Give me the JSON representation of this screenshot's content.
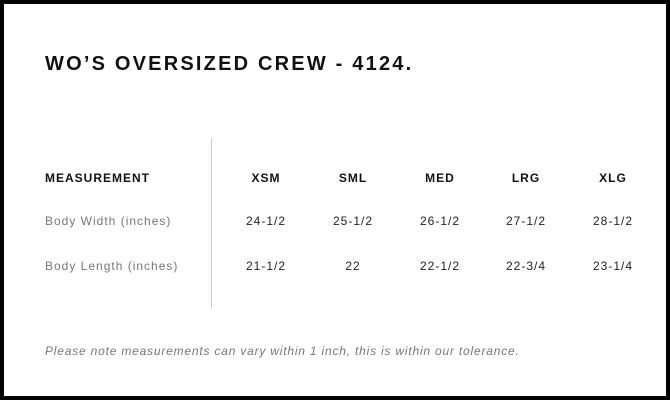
{
  "title": "WO’S OVERSIZED CREW - 4124.",
  "table": {
    "headers": [
      "MEASUREMENT",
      "XSM",
      "SML",
      "MED",
      "LRG",
      "XLG"
    ],
    "rows": [
      {
        "label": "Body Width (inches)",
        "values": [
          "24-1/2",
          "25-1/2",
          "26-1/2",
          "27-1/2",
          "28-1/2"
        ]
      },
      {
        "label": "Body Length (inches)",
        "values": [
          "21-1/2",
          "22",
          "22-1/2",
          "22-3/4",
          "23-1/4"
        ]
      }
    ]
  },
  "note": "Please note measurements can vary within 1 inch, this is within our tolerance."
}
